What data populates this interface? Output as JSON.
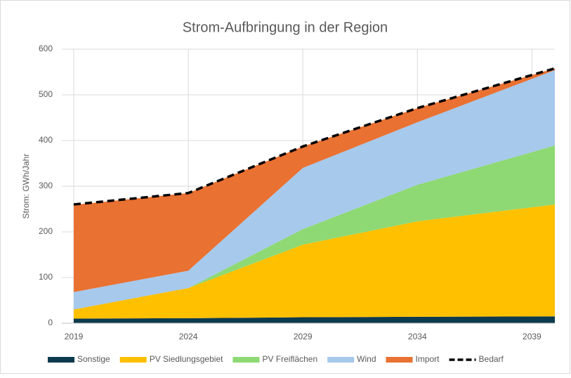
{
  "chart_data": {
    "type": "stacked_area",
    "title": "Strom-Aufbringung in der Region",
    "y_label": "Strom: GWh/Jahr",
    "x": [
      2019,
      2024,
      2029,
      2034,
      2040
    ],
    "xlim": [
      2019,
      2040
    ],
    "xticks": [
      2019,
      2024,
      2029,
      2034,
      2039
    ],
    "ylim": [
      0,
      600
    ],
    "yticks": [
      0,
      100,
      200,
      300,
      400,
      500,
      600
    ],
    "grid": true,
    "legend": "bottom",
    "series": [
      {
        "name": "Sonstige",
        "color": "#0e3a4e",
        "values": [
          10,
          11,
          13,
          14,
          15
        ]
      },
      {
        "name": "PV Siedlungsgebiet",
        "color": "#ffc000",
        "values": [
          20,
          66,
          159,
          209,
          245
        ]
      },
      {
        "name": "PV Freiflächen",
        "color": "#8ed973",
        "values": [
          0,
          0,
          34,
          80,
          129
        ]
      },
      {
        "name": "Wind",
        "color": "#a6c9ec",
        "values": [
          38,
          38,
          134,
          137,
          165
        ]
      },
      {
        "name": "Import",
        "color": "#e97132",
        "values": [
          191,
          170,
          47,
          31,
          4
        ]
      }
    ],
    "lines": [
      {
        "name": "Bedarf",
        "color": "#000000",
        "dash": true,
        "values": [
          260,
          285,
          387,
          471,
          558
        ]
      }
    ]
  }
}
